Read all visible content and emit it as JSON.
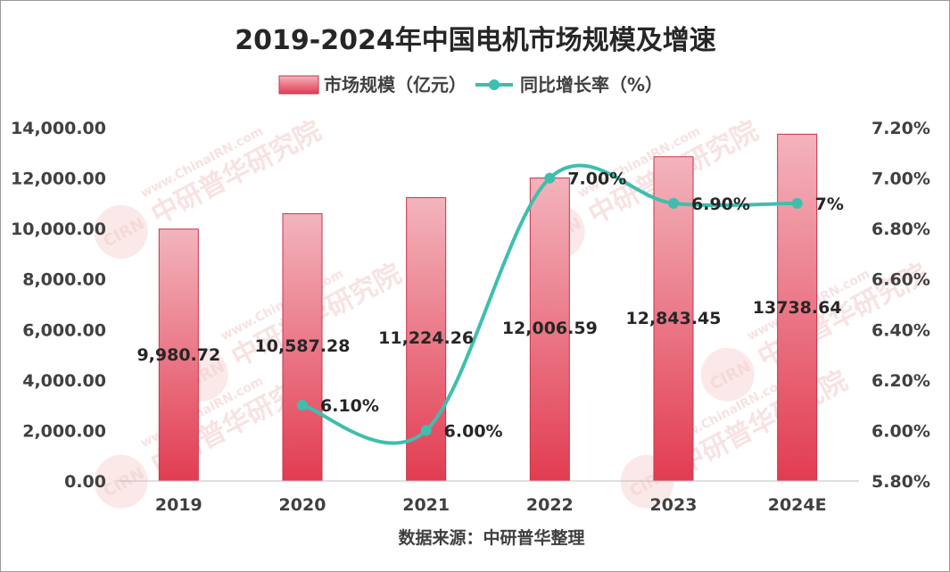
{
  "chart_data": {
    "type": "bar+line",
    "title": "2019-2024年中国电机市场规模及增速",
    "categories": [
      "2019",
      "2020",
      "2021",
      "2022",
      "2023",
      "2024E"
    ],
    "series": [
      {
        "name": "市场规模（亿元）",
        "type": "bar",
        "axis": "left",
        "values": [
          9980.72,
          10587.28,
          11224.26,
          12006.59,
          12843.45,
          13738.64
        ],
        "labels": [
          "9,980.72",
          "10,587.28",
          "11,224.26",
          "12,006.59",
          "12,843.45",
          "13738.64"
        ],
        "color": "#e0455a"
      },
      {
        "name": "同比增长率（%）",
        "type": "line",
        "axis": "right",
        "values": [
          null,
          6.1,
          6.0,
          7.0,
          6.9,
          6.9
        ],
        "labels": [
          "",
          "6.10%",
          "6.00%",
          "7.00%",
          "6.90%",
          "7%"
        ],
        "color": "#3dbfad"
      }
    ],
    "y_left": {
      "min": 0,
      "max": 14000,
      "ticks": [
        0,
        2000,
        4000,
        6000,
        8000,
        10000,
        12000,
        14000
      ],
      "tick_labels": [
        "0.00",
        "2,000.00",
        "4,000.00",
        "6,000.00",
        "8,000.00",
        "10,000.00",
        "12,000.00",
        "14,000.00"
      ]
    },
    "y_right": {
      "min": 5.8,
      "max": 7.2,
      "ticks": [
        5.8,
        6.0,
        6.2,
        6.4,
        6.6,
        6.8,
        7.0,
        7.2
      ],
      "tick_labels": [
        "5.80%",
        "6.00%",
        "6.20%",
        "6.40%",
        "6.60%",
        "6.80%",
        "7.00%",
        "7.20%"
      ]
    },
    "legend_position": "top-center",
    "grid": false,
    "source": "数据来源：中研普华整理"
  },
  "watermark": {
    "text_en": "www.ChinaIRN.com",
    "text_cn": "中研普华研究院",
    "logo": "CIRN"
  }
}
